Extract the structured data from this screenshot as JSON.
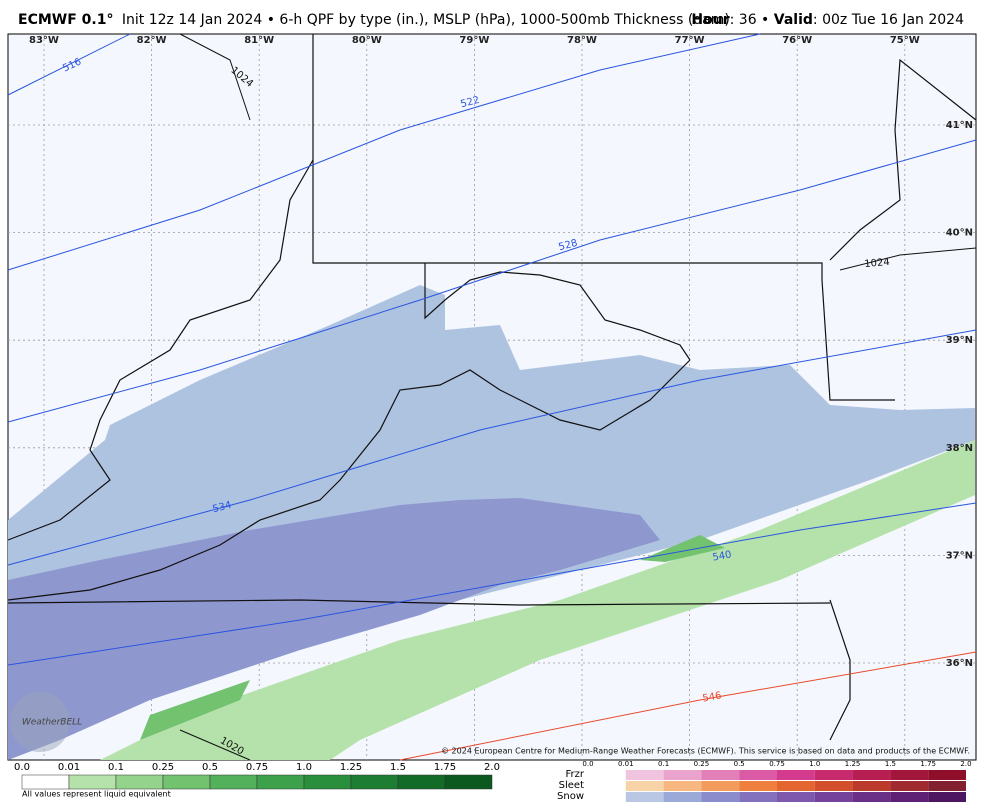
{
  "header": {
    "model": "ECMWF 0.1°",
    "description": "Init 12z 14 Jan 2024 • 6-h QPF by type (in.), MSLP (hPa), 1000-500mb Thickness (dam)",
    "hour_label": "Hour",
    "hour_value": ": 36 •",
    "valid_label": "Valid",
    "valid_value": ": 00z Tue 16 Jan 2024"
  },
  "map": {
    "longitudes": [
      "83°W",
      "82°W",
      "81°W",
      "80°W",
      "79°W",
      "78°W",
      "77°W",
      "76°W",
      "75°W"
    ],
    "latitudes": [
      "41°N",
      "40°N",
      "39°N",
      "38°N",
      "37°N",
      "36°N"
    ],
    "thickness_labels": [
      "516",
      "522",
      "528",
      "534",
      "540",
      "546"
    ],
    "pressure_labels": [
      "1024",
      "1024",
      "1020"
    ],
    "watermark": "WeatherBELL",
    "credit": "© 2024 European Centre for Medium-Range Weather Forecasts (ECMWF). This service is based on data and products of the ECMWF."
  },
  "legend": {
    "rain_ticks": [
      "0.0",
      "0.01",
      "0.1",
      "0.25",
      "0.5",
      "0.75",
      "1.0",
      "1.25",
      "1.5",
      "1.75",
      "2.0"
    ],
    "note": "All values represent liquid equivalent",
    "type_ticks": [
      "0.0",
      "0.01",
      "0.1",
      "0.25",
      "0.5",
      "0.75",
      "1.0",
      "1.25",
      "1.5",
      "1.75",
      "2.0"
    ],
    "types": [
      "Frzr",
      "Sleet",
      "Snow"
    ]
  }
}
